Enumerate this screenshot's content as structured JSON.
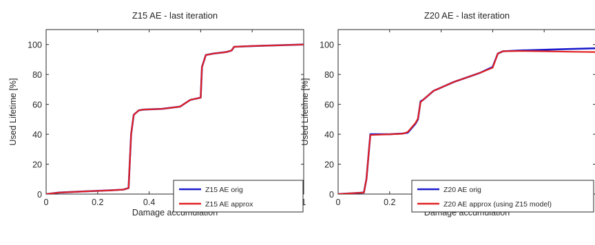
{
  "chart_data": [
    {
      "type": "line",
      "title": "Z15 AE - last iteration",
      "xlabel": "Damage accumulation",
      "ylabel": "Used Lifetime [%]",
      "xlim": [
        0,
        1
      ],
      "ylim": [
        0,
        110
      ],
      "xticks": [
        "0",
        "0.2",
        "0.4",
        "0.6",
        "0.8",
        "1"
      ],
      "yticks": [
        "0",
        "20",
        "40",
        "60",
        "80",
        "100"
      ],
      "grid": false,
      "legend_position": "bottom-right",
      "series": [
        {
          "name": "Z15 AE orig",
          "color": "#1a1acc",
          "x": [
            0,
            0.05,
            0.15,
            0.25,
            0.3,
            0.32,
            0.33,
            0.34,
            0.36,
            0.38,
            0.45,
            0.52,
            0.56,
            0.6,
            0.605,
            0.62,
            0.65,
            0.7,
            0.72,
            0.73,
            0.8,
            0.9,
            1.0
          ],
          "y": [
            0,
            1,
            1.8,
            2.5,
            3,
            4,
            40,
            53,
            56,
            56.5,
            57,
            58.5,
            63,
            64.5,
            85,
            93,
            94,
            95,
            96,
            98.5,
            99,
            99.5,
            100
          ]
        },
        {
          "name": "Z15 AE approx",
          "color": "#e02020",
          "x": [
            0,
            0.05,
            0.15,
            0.25,
            0.3,
            0.32,
            0.33,
            0.34,
            0.36,
            0.38,
            0.45,
            0.52,
            0.56,
            0.6,
            0.605,
            0.62,
            0.65,
            0.7,
            0.72,
            0.73,
            0.8,
            0.9,
            1.0
          ],
          "y": [
            0,
            1,
            1.8,
            2.5,
            3,
            4,
            40,
            53,
            56,
            56.5,
            57,
            58.5,
            63,
            64.5,
            85,
            93,
            94,
            95,
            96,
            98.5,
            99,
            99.5,
            100
          ]
        }
      ]
    },
    {
      "type": "line",
      "title": "Z20 AE - last iteration",
      "xlabel": "Damage accumulation",
      "ylabel": "Used Lifetime [%]",
      "xlim": [
        0,
        1
      ],
      "ylim": [
        0,
        110
      ],
      "xticks": [
        "0",
        "0.2",
        "0.4",
        "0.6",
        "0.8"
      ],
      "yticks": [
        "0",
        "20",
        "40",
        "60",
        "80",
        "100"
      ],
      "grid": false,
      "legend_position": "bottom-right",
      "series": [
        {
          "name": "Z20 AE orig",
          "color": "#1a1acc",
          "x": [
            0,
            0.05,
            0.1,
            0.11,
            0.12,
            0.125,
            0.2,
            0.25,
            0.27,
            0.3,
            0.31,
            0.32,
            0.33,
            0.37,
            0.45,
            0.55,
            0.6,
            0.62,
            0.64,
            0.7,
            0.8,
            0.9,
            1.0
          ],
          "y": [
            0,
            0.5,
            1,
            10,
            30,
            40,
            40,
            40.5,
            41,
            47,
            50,
            62,
            63,
            69,
            75,
            81,
            85,
            94,
            95.5,
            96,
            96.5,
            97,
            97.5
          ]
        },
        {
          "name": "Z20 AE approx (using Z15 model)",
          "color": "#e02020",
          "x": [
            0,
            0.05,
            0.1,
            0.11,
            0.12,
            0.125,
            0.2,
            0.25,
            0.27,
            0.3,
            0.31,
            0.32,
            0.33,
            0.37,
            0.45,
            0.55,
            0.6,
            0.62,
            0.64,
            0.7,
            0.8,
            0.9,
            1.0
          ],
          "y": [
            0,
            0.5,
            1,
            10,
            30,
            39.5,
            40,
            40.3,
            41.5,
            47.5,
            50.5,
            61.5,
            63,
            69,
            75,
            81,
            84.5,
            94,
            95.5,
            95.7,
            95.5,
            95.2,
            95
          ]
        }
      ]
    }
  ]
}
